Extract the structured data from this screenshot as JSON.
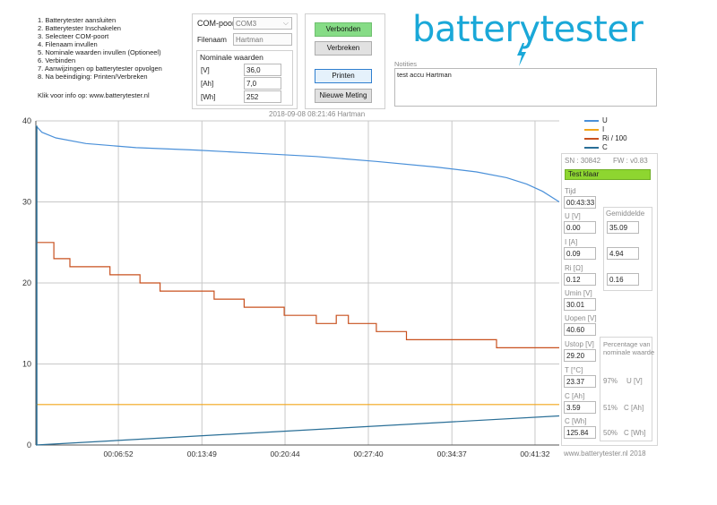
{
  "instructions": [
    "1. Batterytester aansluiten",
    "2. Batterytester Inschakelen",
    "3. Selecteer COM-poort",
    "4. Filenaam invullen",
    "5. Nominale waarden invullen (Optioneel)",
    "6. Verbinden",
    "7. Aanwijzingen op batterytester opvolgen",
    "8. Na beëindiging: Printen/Verbreken"
  ],
  "info_text": "Klik voor info op: www.batterytester.nl",
  "connection": {
    "com_label": "COM-poort",
    "com_value": "COM3",
    "filename_label": "Filenaam",
    "filename_value": "Hartman",
    "nominal_title": "Nominale waarden",
    "v_label": "[V]",
    "v_value": "36,0",
    "ah_label": "[Ah]",
    "ah_value": "7,0",
    "wh_label": "[Wh]",
    "wh_value": "252"
  },
  "buttons": {
    "connect": "Verbonden",
    "disconnect": "Verbreken",
    "print": "Printen",
    "new_measurement": "Nieuwe Meting"
  },
  "notes": {
    "label": "Notities",
    "text": "test accu Hartman"
  },
  "logo": "batterytester",
  "chart_header": "2018-09-08 08:21:46 Hartman",
  "footer": "www.batterytester.nl  2018",
  "status": {
    "sn": "SN : 30842",
    "fw": "FW : v0.83",
    "state": "Test klaar",
    "state_color": "#8ed630",
    "tijd_label": "Tijd",
    "tijd": "00:43:33",
    "u_label": "U [V]",
    "u": "0.00",
    "gemiddelde_label": "Gemiddelde",
    "u_avg": "35.09",
    "i_label": "I [A]",
    "i": "0.09",
    "i_avg": "4.94",
    "ri_label": "Ri [Ω]",
    "ri": "0.12",
    "ri_avg": "0.16",
    "umin_label": "Umin [V]",
    "umin": "30.01",
    "uopen_label": "Uopen [V]",
    "uopen": "40.60",
    "ustop_label": "Ustop [V]",
    "ustop": "29.20",
    "t_label": "T [°C]",
    "t": "23.37",
    "cah_label": "C [Ah]",
    "cah": "3.59",
    "cwh_label": "C [Wh]",
    "cwh": "125.84",
    "pct_title_1": "Percentage van",
    "pct_title_2": "nominale waarde",
    "pct_u": "97%",
    "pct_u_label": "U [V]",
    "pct_cah": "51%",
    "pct_cah_label": "C [Ah]",
    "pct_cwh": "50%",
    "pct_cwh_label": "C [Wh]"
  },
  "chart_data": {
    "type": "line",
    "x_unit": "seconds",
    "xlim": [
      0,
      2613
    ],
    "ylim": [
      0,
      40
    ],
    "y_ticks": [
      0,
      10,
      20,
      30,
      40
    ],
    "x_ticks": [
      {
        "t": 412,
        "label": "00:06:52"
      },
      {
        "t": 829,
        "label": "00:13:49"
      },
      {
        "t": 1244,
        "label": "00:20:44"
      },
      {
        "t": 1660,
        "label": "00:27:40"
      },
      {
        "t": 2077,
        "label": "00:34:37"
      },
      {
        "t": 2492,
        "label": "00:41:32"
      }
    ],
    "legend": [
      {
        "name": "U",
        "color": "#4a90d9"
      },
      {
        "name": "I",
        "color": "#f2a51a"
      },
      {
        "name": "Ri / 100",
        "color": "#c8501e"
      },
      {
        "name": "C",
        "color": "#2a6f97"
      }
    ],
    "series": [
      {
        "name": "U",
        "color": "#4a90d9",
        "points": [
          [
            0,
            39.4
          ],
          [
            30,
            38.6
          ],
          [
            100,
            37.9
          ],
          [
            250,
            37.2
          ],
          [
            500,
            36.7
          ],
          [
            800,
            36.4
          ],
          [
            1100,
            36.0
          ],
          [
            1400,
            35.6
          ],
          [
            1700,
            35.0
          ],
          [
            2000,
            34.3
          ],
          [
            2200,
            33.7
          ],
          [
            2350,
            33.0
          ],
          [
            2450,
            32.2
          ],
          [
            2530,
            31.3
          ],
          [
            2613,
            30.0
          ]
        ]
      },
      {
        "name": "I",
        "color": "#f2a51a",
        "points": [
          [
            0,
            5.0
          ],
          [
            2613,
            5.0
          ]
        ]
      },
      {
        "name": "Ri / 100",
        "color": "#c8501e",
        "points": [
          [
            0,
            25
          ],
          [
            90,
            25
          ],
          [
            90,
            23
          ],
          [
            170,
            23
          ],
          [
            170,
            22
          ],
          [
            370,
            22
          ],
          [
            370,
            21
          ],
          [
            520,
            21
          ],
          [
            520,
            20
          ],
          [
            620,
            20
          ],
          [
            620,
            19
          ],
          [
            890,
            19
          ],
          [
            890,
            18
          ],
          [
            1040,
            18
          ],
          [
            1040,
            17
          ],
          [
            1240,
            17
          ],
          [
            1240,
            16
          ],
          [
            1400,
            16
          ],
          [
            1400,
            15
          ],
          [
            1500,
            15
          ],
          [
            1500,
            16
          ],
          [
            1560,
            16
          ],
          [
            1560,
            15
          ],
          [
            1700,
            15
          ],
          [
            1700,
            14
          ],
          [
            1850,
            14
          ],
          [
            1850,
            13
          ],
          [
            2300,
            13
          ],
          [
            2300,
            12
          ],
          [
            2613,
            12
          ]
        ]
      },
      {
        "name": "C",
        "color": "#2a6f97",
        "points": [
          [
            0,
            0
          ],
          [
            2613,
            3.59
          ]
        ]
      }
    ]
  }
}
